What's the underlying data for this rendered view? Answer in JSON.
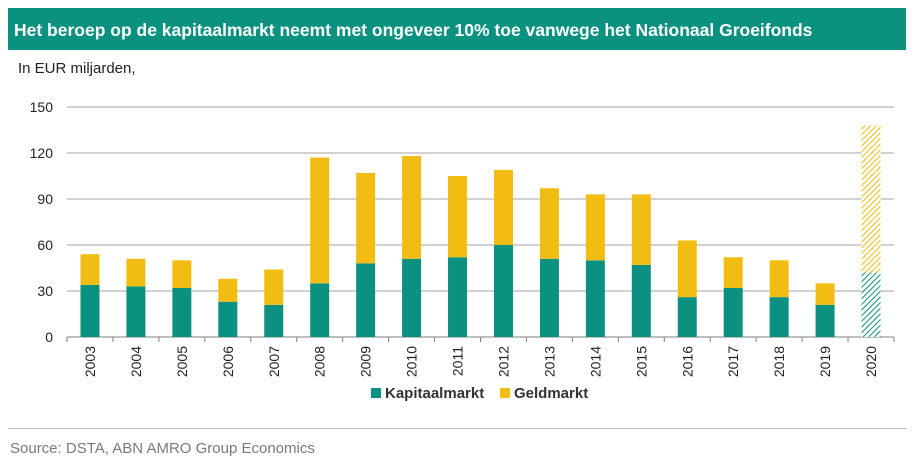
{
  "header": {
    "title": "Het beroep op de kapitaalmarkt neemt met ongeveer 10% toe vanwege het Nationaal Groeifonds",
    "subtitle": "In EUR miljarden,"
  },
  "footer": {
    "source": "Source: DSTA, ABN AMRO Group Economics"
  },
  "colors": {
    "title_bar": "#0a9180",
    "kapitaalmarkt": "#0b9180",
    "geldmarkt": "#f2bd12",
    "grid": "#a6a6a6"
  },
  "chart_data": {
    "type": "bar",
    "stacked": true,
    "categories": [
      "2003",
      "2004",
      "2005",
      "2006",
      "2007",
      "2008",
      "2009",
      "2010",
      "2011",
      "2012",
      "2013",
      "2014",
      "2015",
      "2016",
      "2017",
      "2018",
      "2019",
      "2020"
    ],
    "series": [
      {
        "name": "Kapitaalmarkt",
        "color": "#0b9180",
        "values": [
          34,
          33,
          32,
          23,
          21,
          35,
          48,
          51,
          52,
          60,
          51,
          50,
          47,
          26,
          32,
          26,
          21,
          42
        ]
      },
      {
        "name": "Geldmarkt",
        "color": "#f2bd12",
        "values": [
          20,
          18,
          18,
          15,
          23,
          82,
          59,
          67,
          53,
          49,
          46,
          43,
          46,
          37,
          20,
          24,
          14,
          96
        ]
      }
    ],
    "hatched_categories": [
      "2020"
    ],
    "yticks": [
      0,
      30,
      60,
      90,
      120,
      150
    ],
    "ylim": [
      0,
      150
    ],
    "grid": true,
    "legend_position": "bottom"
  }
}
